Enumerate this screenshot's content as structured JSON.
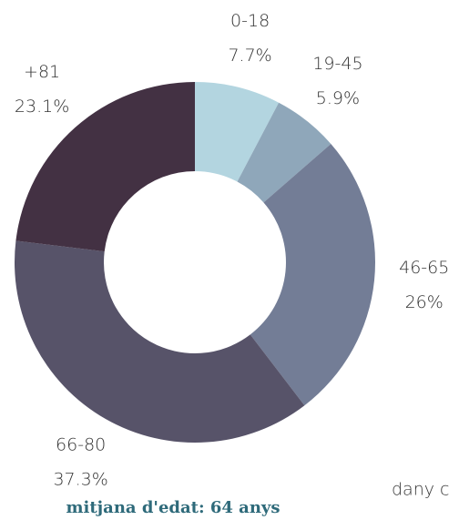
{
  "chart_data": {
    "type": "donut",
    "categories": [
      "0-18",
      "19-45",
      "46-65",
      "66-80",
      "+81"
    ],
    "values": [
      7.7,
      5.9,
      26,
      37.3,
      23.1
    ],
    "value_labels": [
      "7.7%",
      "5.9%",
      "26%",
      "37.3%",
      "23.1%"
    ],
    "colors": [
      "#b3d5e0",
      "#8fa7ba",
      "#737d96",
      "#575369",
      "#433143"
    ],
    "subtitle": "mitjana d'edat: 64 anys",
    "annotation": "dany c"
  }
}
